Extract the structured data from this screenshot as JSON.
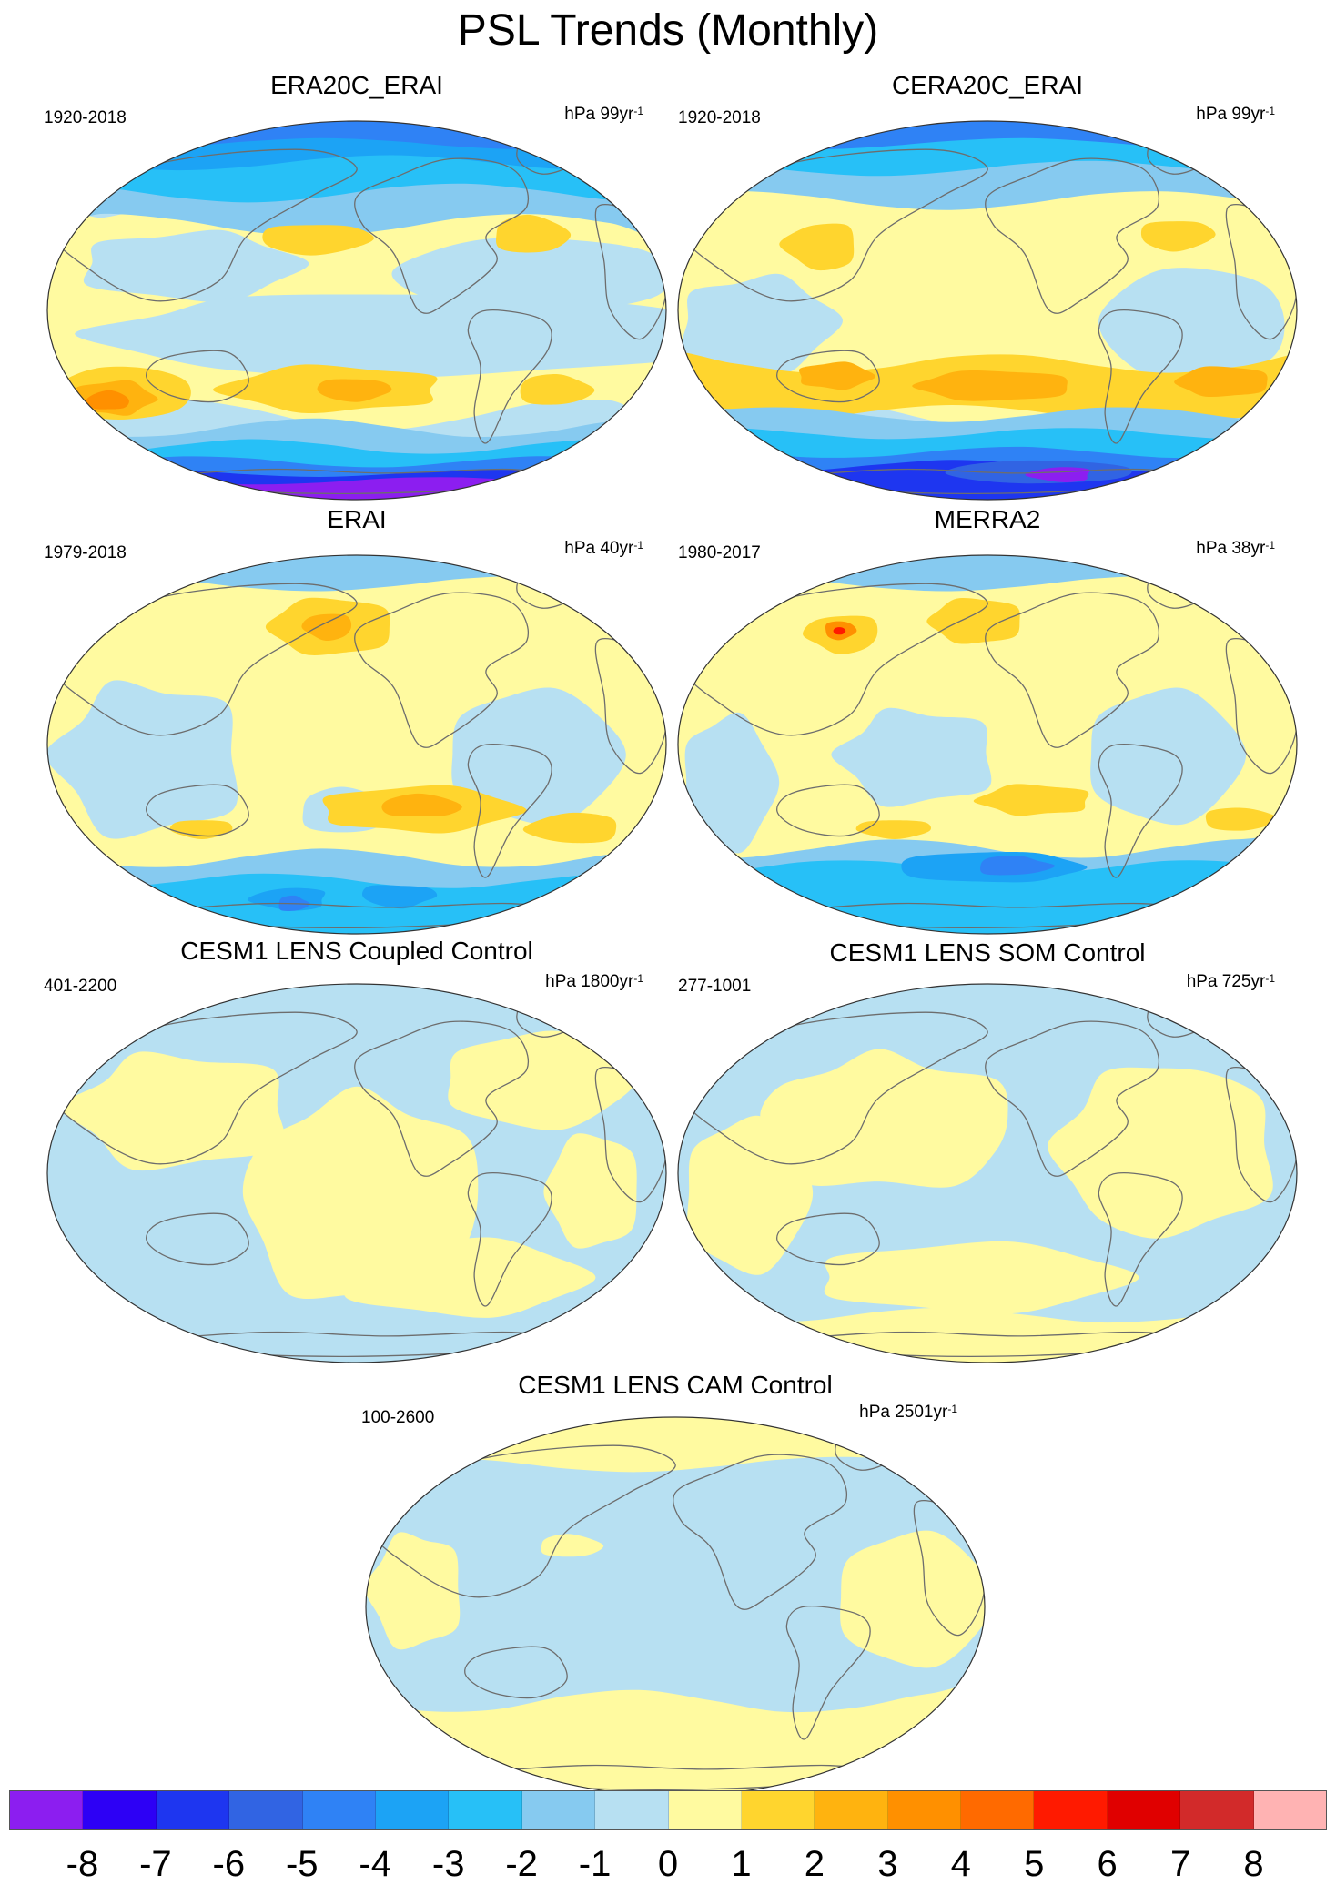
{
  "title": "PSL Trends (Monthly)",
  "panels": [
    {
      "title": "ERA20C_ERAI",
      "period": "1920-2018",
      "units_base": "hPa 99yr",
      "units_exp": "-1",
      "scheme": "era20c"
    },
    {
      "title": "CERA20C_ERAI",
      "period": "1920-2018",
      "units_base": "hPa 99yr",
      "units_exp": "-1",
      "scheme": "cera20c"
    },
    {
      "title": "ERAI",
      "period": "1979-2018",
      "units_base": "hPa 40yr",
      "units_exp": "-1",
      "scheme": "erai"
    },
    {
      "title": "MERRA2",
      "period": "1980-2017",
      "units_base": "hPa 38yr",
      "units_exp": "-1",
      "scheme": "merra2"
    },
    {
      "title": "CESM1 LENS Coupled Control",
      "period": "401-2200",
      "units_base": "hPa 1800yr",
      "units_exp": "-1",
      "scheme": "coupled"
    },
    {
      "title": "CESM1 LENS SOM Control",
      "period": "277-1001",
      "units_base": "hPa 725yr",
      "units_exp": "-1",
      "scheme": "som"
    },
    {
      "title": "CESM1 LENS CAM Control",
      "period": "100-2600",
      "units_base": "hPa 2501yr",
      "units_exp": "-1",
      "scheme": "cam"
    }
  ],
  "colorbar": {
    "colors": [
      "#8c1ef0",
      "#2d00f5",
      "#1e36f0",
      "#3164e3",
      "#2f82f5",
      "#1ca3f5",
      "#27c0f7",
      "#86caf0",
      "#b7e0f2",
      "#fffaa0",
      "#ffd52e",
      "#ffb30f",
      "#ff9000",
      "#ff6a00",
      "#ff1a00",
      "#e00000",
      "#d22a2a",
      "#ffb3b3"
    ],
    "labels": [
      "-8",
      "-7",
      "-6",
      "-5",
      "-4",
      "-3",
      "-2",
      "-1",
      "0",
      "1",
      "2",
      "3",
      "4",
      "5",
      "6",
      "7",
      "8"
    ]
  }
}
